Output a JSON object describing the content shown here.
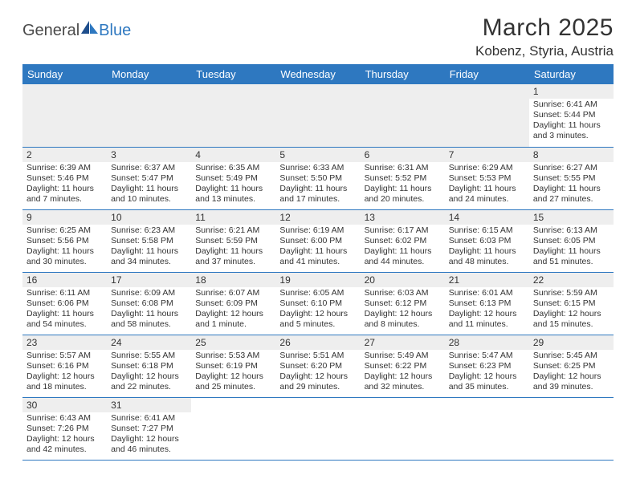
{
  "brand": {
    "part1": "General",
    "part2": "Blue"
  },
  "title": "March 2025",
  "location": "Kobenz, Styria, Austria",
  "colors": {
    "header_bg": "#2e78c0",
    "header_fg": "#ffffff",
    "daynum_bg": "#eeeeee",
    "text": "#333333",
    "row_border": "#2e78c0"
  },
  "dayHeaders": [
    "Sunday",
    "Monday",
    "Tuesday",
    "Wednesday",
    "Thursday",
    "Friday",
    "Saturday"
  ],
  "weeks": [
    [
      null,
      null,
      null,
      null,
      null,
      null,
      {
        "n": "1",
        "sr": "Sunrise: 6:41 AM",
        "ss": "Sunset: 5:44 PM",
        "d1": "Daylight: 11 hours",
        "d2": "and 3 minutes."
      }
    ],
    [
      {
        "n": "2",
        "sr": "Sunrise: 6:39 AM",
        "ss": "Sunset: 5:46 PM",
        "d1": "Daylight: 11 hours",
        "d2": "and 7 minutes."
      },
      {
        "n": "3",
        "sr": "Sunrise: 6:37 AM",
        "ss": "Sunset: 5:47 PM",
        "d1": "Daylight: 11 hours",
        "d2": "and 10 minutes."
      },
      {
        "n": "4",
        "sr": "Sunrise: 6:35 AM",
        "ss": "Sunset: 5:49 PM",
        "d1": "Daylight: 11 hours",
        "d2": "and 13 minutes."
      },
      {
        "n": "5",
        "sr": "Sunrise: 6:33 AM",
        "ss": "Sunset: 5:50 PM",
        "d1": "Daylight: 11 hours",
        "d2": "and 17 minutes."
      },
      {
        "n": "6",
        "sr": "Sunrise: 6:31 AM",
        "ss": "Sunset: 5:52 PM",
        "d1": "Daylight: 11 hours",
        "d2": "and 20 minutes."
      },
      {
        "n": "7",
        "sr": "Sunrise: 6:29 AM",
        "ss": "Sunset: 5:53 PM",
        "d1": "Daylight: 11 hours",
        "d2": "and 24 minutes."
      },
      {
        "n": "8",
        "sr": "Sunrise: 6:27 AM",
        "ss": "Sunset: 5:55 PM",
        "d1": "Daylight: 11 hours",
        "d2": "and 27 minutes."
      }
    ],
    [
      {
        "n": "9",
        "sr": "Sunrise: 6:25 AM",
        "ss": "Sunset: 5:56 PM",
        "d1": "Daylight: 11 hours",
        "d2": "and 30 minutes."
      },
      {
        "n": "10",
        "sr": "Sunrise: 6:23 AM",
        "ss": "Sunset: 5:58 PM",
        "d1": "Daylight: 11 hours",
        "d2": "and 34 minutes."
      },
      {
        "n": "11",
        "sr": "Sunrise: 6:21 AM",
        "ss": "Sunset: 5:59 PM",
        "d1": "Daylight: 11 hours",
        "d2": "and 37 minutes."
      },
      {
        "n": "12",
        "sr": "Sunrise: 6:19 AM",
        "ss": "Sunset: 6:00 PM",
        "d1": "Daylight: 11 hours",
        "d2": "and 41 minutes."
      },
      {
        "n": "13",
        "sr": "Sunrise: 6:17 AM",
        "ss": "Sunset: 6:02 PM",
        "d1": "Daylight: 11 hours",
        "d2": "and 44 minutes."
      },
      {
        "n": "14",
        "sr": "Sunrise: 6:15 AM",
        "ss": "Sunset: 6:03 PM",
        "d1": "Daylight: 11 hours",
        "d2": "and 48 minutes."
      },
      {
        "n": "15",
        "sr": "Sunrise: 6:13 AM",
        "ss": "Sunset: 6:05 PM",
        "d1": "Daylight: 11 hours",
        "d2": "and 51 minutes."
      }
    ],
    [
      {
        "n": "16",
        "sr": "Sunrise: 6:11 AM",
        "ss": "Sunset: 6:06 PM",
        "d1": "Daylight: 11 hours",
        "d2": "and 54 minutes."
      },
      {
        "n": "17",
        "sr": "Sunrise: 6:09 AM",
        "ss": "Sunset: 6:08 PM",
        "d1": "Daylight: 11 hours",
        "d2": "and 58 minutes."
      },
      {
        "n": "18",
        "sr": "Sunrise: 6:07 AM",
        "ss": "Sunset: 6:09 PM",
        "d1": "Daylight: 12 hours",
        "d2": "and 1 minute."
      },
      {
        "n": "19",
        "sr": "Sunrise: 6:05 AM",
        "ss": "Sunset: 6:10 PM",
        "d1": "Daylight: 12 hours",
        "d2": "and 5 minutes."
      },
      {
        "n": "20",
        "sr": "Sunrise: 6:03 AM",
        "ss": "Sunset: 6:12 PM",
        "d1": "Daylight: 12 hours",
        "d2": "and 8 minutes."
      },
      {
        "n": "21",
        "sr": "Sunrise: 6:01 AM",
        "ss": "Sunset: 6:13 PM",
        "d1": "Daylight: 12 hours",
        "d2": "and 11 minutes."
      },
      {
        "n": "22",
        "sr": "Sunrise: 5:59 AM",
        "ss": "Sunset: 6:15 PM",
        "d1": "Daylight: 12 hours",
        "d2": "and 15 minutes."
      }
    ],
    [
      {
        "n": "23",
        "sr": "Sunrise: 5:57 AM",
        "ss": "Sunset: 6:16 PM",
        "d1": "Daylight: 12 hours",
        "d2": "and 18 minutes."
      },
      {
        "n": "24",
        "sr": "Sunrise: 5:55 AM",
        "ss": "Sunset: 6:18 PM",
        "d1": "Daylight: 12 hours",
        "d2": "and 22 minutes."
      },
      {
        "n": "25",
        "sr": "Sunrise: 5:53 AM",
        "ss": "Sunset: 6:19 PM",
        "d1": "Daylight: 12 hours",
        "d2": "and 25 minutes."
      },
      {
        "n": "26",
        "sr": "Sunrise: 5:51 AM",
        "ss": "Sunset: 6:20 PM",
        "d1": "Daylight: 12 hours",
        "d2": "and 29 minutes."
      },
      {
        "n": "27",
        "sr": "Sunrise: 5:49 AM",
        "ss": "Sunset: 6:22 PM",
        "d1": "Daylight: 12 hours",
        "d2": "and 32 minutes."
      },
      {
        "n": "28",
        "sr": "Sunrise: 5:47 AM",
        "ss": "Sunset: 6:23 PM",
        "d1": "Daylight: 12 hours",
        "d2": "and 35 minutes."
      },
      {
        "n": "29",
        "sr": "Sunrise: 5:45 AM",
        "ss": "Sunset: 6:25 PM",
        "d1": "Daylight: 12 hours",
        "d2": "and 39 minutes."
      }
    ],
    [
      {
        "n": "30",
        "sr": "Sunrise: 6:43 AM",
        "ss": "Sunset: 7:26 PM",
        "d1": "Daylight: 12 hours",
        "d2": "and 42 minutes."
      },
      {
        "n": "31",
        "sr": "Sunrise: 6:41 AM",
        "ss": "Sunset: 7:27 PM",
        "d1": "Daylight: 12 hours",
        "d2": "and 46 minutes."
      },
      null,
      null,
      null,
      null,
      null
    ]
  ]
}
